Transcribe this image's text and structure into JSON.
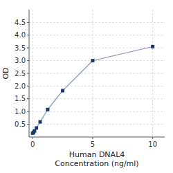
{
  "chart_data": {
    "type": "line",
    "x": [
      0.0,
      0.078,
      0.156,
      0.313,
      0.625,
      1.25,
      2.5,
      5.0,
      10.0
    ],
    "values": [
      0.152,
      0.182,
      0.238,
      0.355,
      0.595,
      1.08,
      1.82,
      3.0,
      3.55
    ],
    "color": "#1a3a6b",
    "marker": "square",
    "xlabel": "Human DNAL4\nConcentration (ng/ml)",
    "ylabel": "OD",
    "xlim": [
      -0.3,
      11
    ],
    "ylim": [
      0,
      5.0
    ],
    "xticks": [
      0,
      5,
      10
    ],
    "yticks": [
      0.5,
      {
        "value": 1.0,
        "label": "1.0"
      },
      1.5,
      {
        "value": 2.0,
        "label": "2.0"
      },
      2.5,
      {
        "value": 3.0,
        "label": "3.0"
      },
      3.5,
      {
        "value": 4.0,
        "label": "4.0"
      },
      4.5
    ],
    "grid": true
  }
}
